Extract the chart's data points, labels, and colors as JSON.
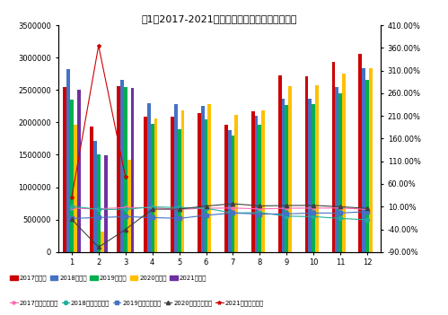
{
  "title": "图1：2017-2021年月度汽车销量及同比变化情况",
  "months": [
    1,
    2,
    3,
    4,
    5,
    6,
    7,
    8,
    9,
    10,
    11,
    12
  ],
  "sales_2017": [
    2550000,
    1930000,
    2560000,
    2090000,
    2090000,
    2150000,
    1970000,
    2170000,
    2720000,
    2710000,
    2940000,
    3060000
  ],
  "sales_2018": [
    2820000,
    1720000,
    2660000,
    2300000,
    2280000,
    2260000,
    1880000,
    2100000,
    2370000,
    2370000,
    2550000,
    2830000
  ],
  "sales_2019": [
    2350000,
    1500000,
    2550000,
    1980000,
    1900000,
    2050000,
    1800000,
    1960000,
    2270000,
    2280000,
    2450000,
    2660000
  ],
  "sales_2020": [
    1960000,
    310000,
    1420000,
    2060000,
    2190000,
    2280000,
    2110000,
    2180000,
    2560000,
    2570000,
    2760000,
    2830000
  ],
  "sales_2021": [
    2500000,
    1490000,
    2530000,
    0,
    0,
    0,
    0,
    0,
    0,
    0,
    0,
    0
  ],
  "growth_2017": [
    0.064,
    0.052,
    0.08,
    0.075,
    0.04,
    0.065,
    0.07,
    0.05,
    0.065,
    0.068,
    0.07,
    0.04
  ],
  "growth_2018": [
    0.107,
    0.04,
    0.04,
    0.095,
    0.08,
    0.063,
    -0.04,
    -0.03,
    -0.11,
    -0.12,
    -0.16,
    -0.19
  ],
  "growth_2019": [
    -0.16,
    -0.14,
    -0.12,
    -0.14,
    -0.16,
    -0.09,
    -0.04,
    -0.065,
    -0.06,
    -0.04,
    -0.04,
    -0.01
  ],
  "growth_2020": [
    -0.18,
    -0.794,
    -0.404,
    0.043,
    0.045,
    0.114,
    0.164,
    0.116,
    0.125,
    0.128,
    0.097,
    0.063
  ],
  "growth_2021": [
    0.3,
    3.648,
    0.753,
    null,
    null,
    null,
    null,
    null,
    null,
    null,
    null,
    null
  ],
  "bar_colors": [
    "#CC0000",
    "#4472C4",
    "#00B050",
    "#FFC000",
    "#7030A0"
  ],
  "line_colors": [
    "#FF69B4",
    "#20B09A",
    "#4472C4",
    "#404040",
    "#CC0000"
  ],
  "line_markers": [
    "*",
    "o",
    "s",
    "^",
    "*"
  ],
  "bar_labels": [
    "2017年销量",
    "2018年销量",
    "2019年销量",
    "2020年销量",
    "2021年销量"
  ],
  "line_labels": [
    "2017年同比增长率",
    "2018年同比增长率",
    "2019年同比增长率",
    "2020年同比增长率",
    "2021年同比增长率"
  ],
  "ylim_left": [
    0,
    3500000
  ],
  "ylim_right": [
    -0.9,
    4.1
  ],
  "yticks_left": [
    0,
    500000,
    1000000,
    1500000,
    2000000,
    2500000,
    3000000,
    3500000
  ],
  "ytick_labels_left": [
    "0",
    "500000",
    "1000000",
    "1500000",
    "2000000",
    "2500000",
    "3000000",
    "3500000"
  ],
  "yticks_right": [
    -0.9,
    -0.4,
    0.1,
    0.6,
    1.1,
    1.6,
    2.1,
    2.6,
    3.1,
    3.6,
    4.1
  ],
  "ytick_labels_right": [
    "-90.00%",
    "-40.00%",
    "10.00%",
    "60.00%",
    "110.00%",
    "160.00%",
    "210.00%",
    "260.00%",
    "310.00%",
    "360.00%",
    "410.00%"
  ]
}
